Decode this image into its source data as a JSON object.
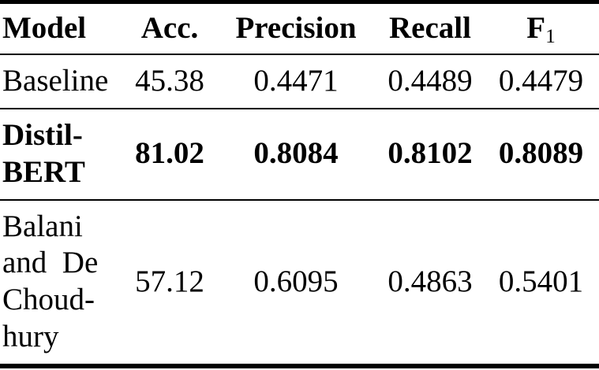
{
  "page": {
    "background": "#ffffff",
    "text_color": "#000000",
    "rule_color": "#000000"
  },
  "table": {
    "headers": {
      "model": "Model",
      "acc": "Acc.",
      "precision": "Precision",
      "recall": "Recall",
      "f1_base": "F",
      "f1_sub": "1"
    },
    "rows": [
      {
        "model": "Baseline",
        "acc": "45.38",
        "precision": "0.4471",
        "recall": "0.4489",
        "f1": "0.4479",
        "emphasis": false
      },
      {
        "model": "Distil-\nBERT",
        "acc": "81.02",
        "precision": "0.8084",
        "recall": "0.8102",
        "f1": "0.8089",
        "emphasis": true
      },
      {
        "model": "Balani\nand  De\nChoud-\nhury",
        "acc": "57.12",
        "precision": "0.6095",
        "recall": "0.4863",
        "f1": "0.5401",
        "emphasis": false
      }
    ]
  }
}
